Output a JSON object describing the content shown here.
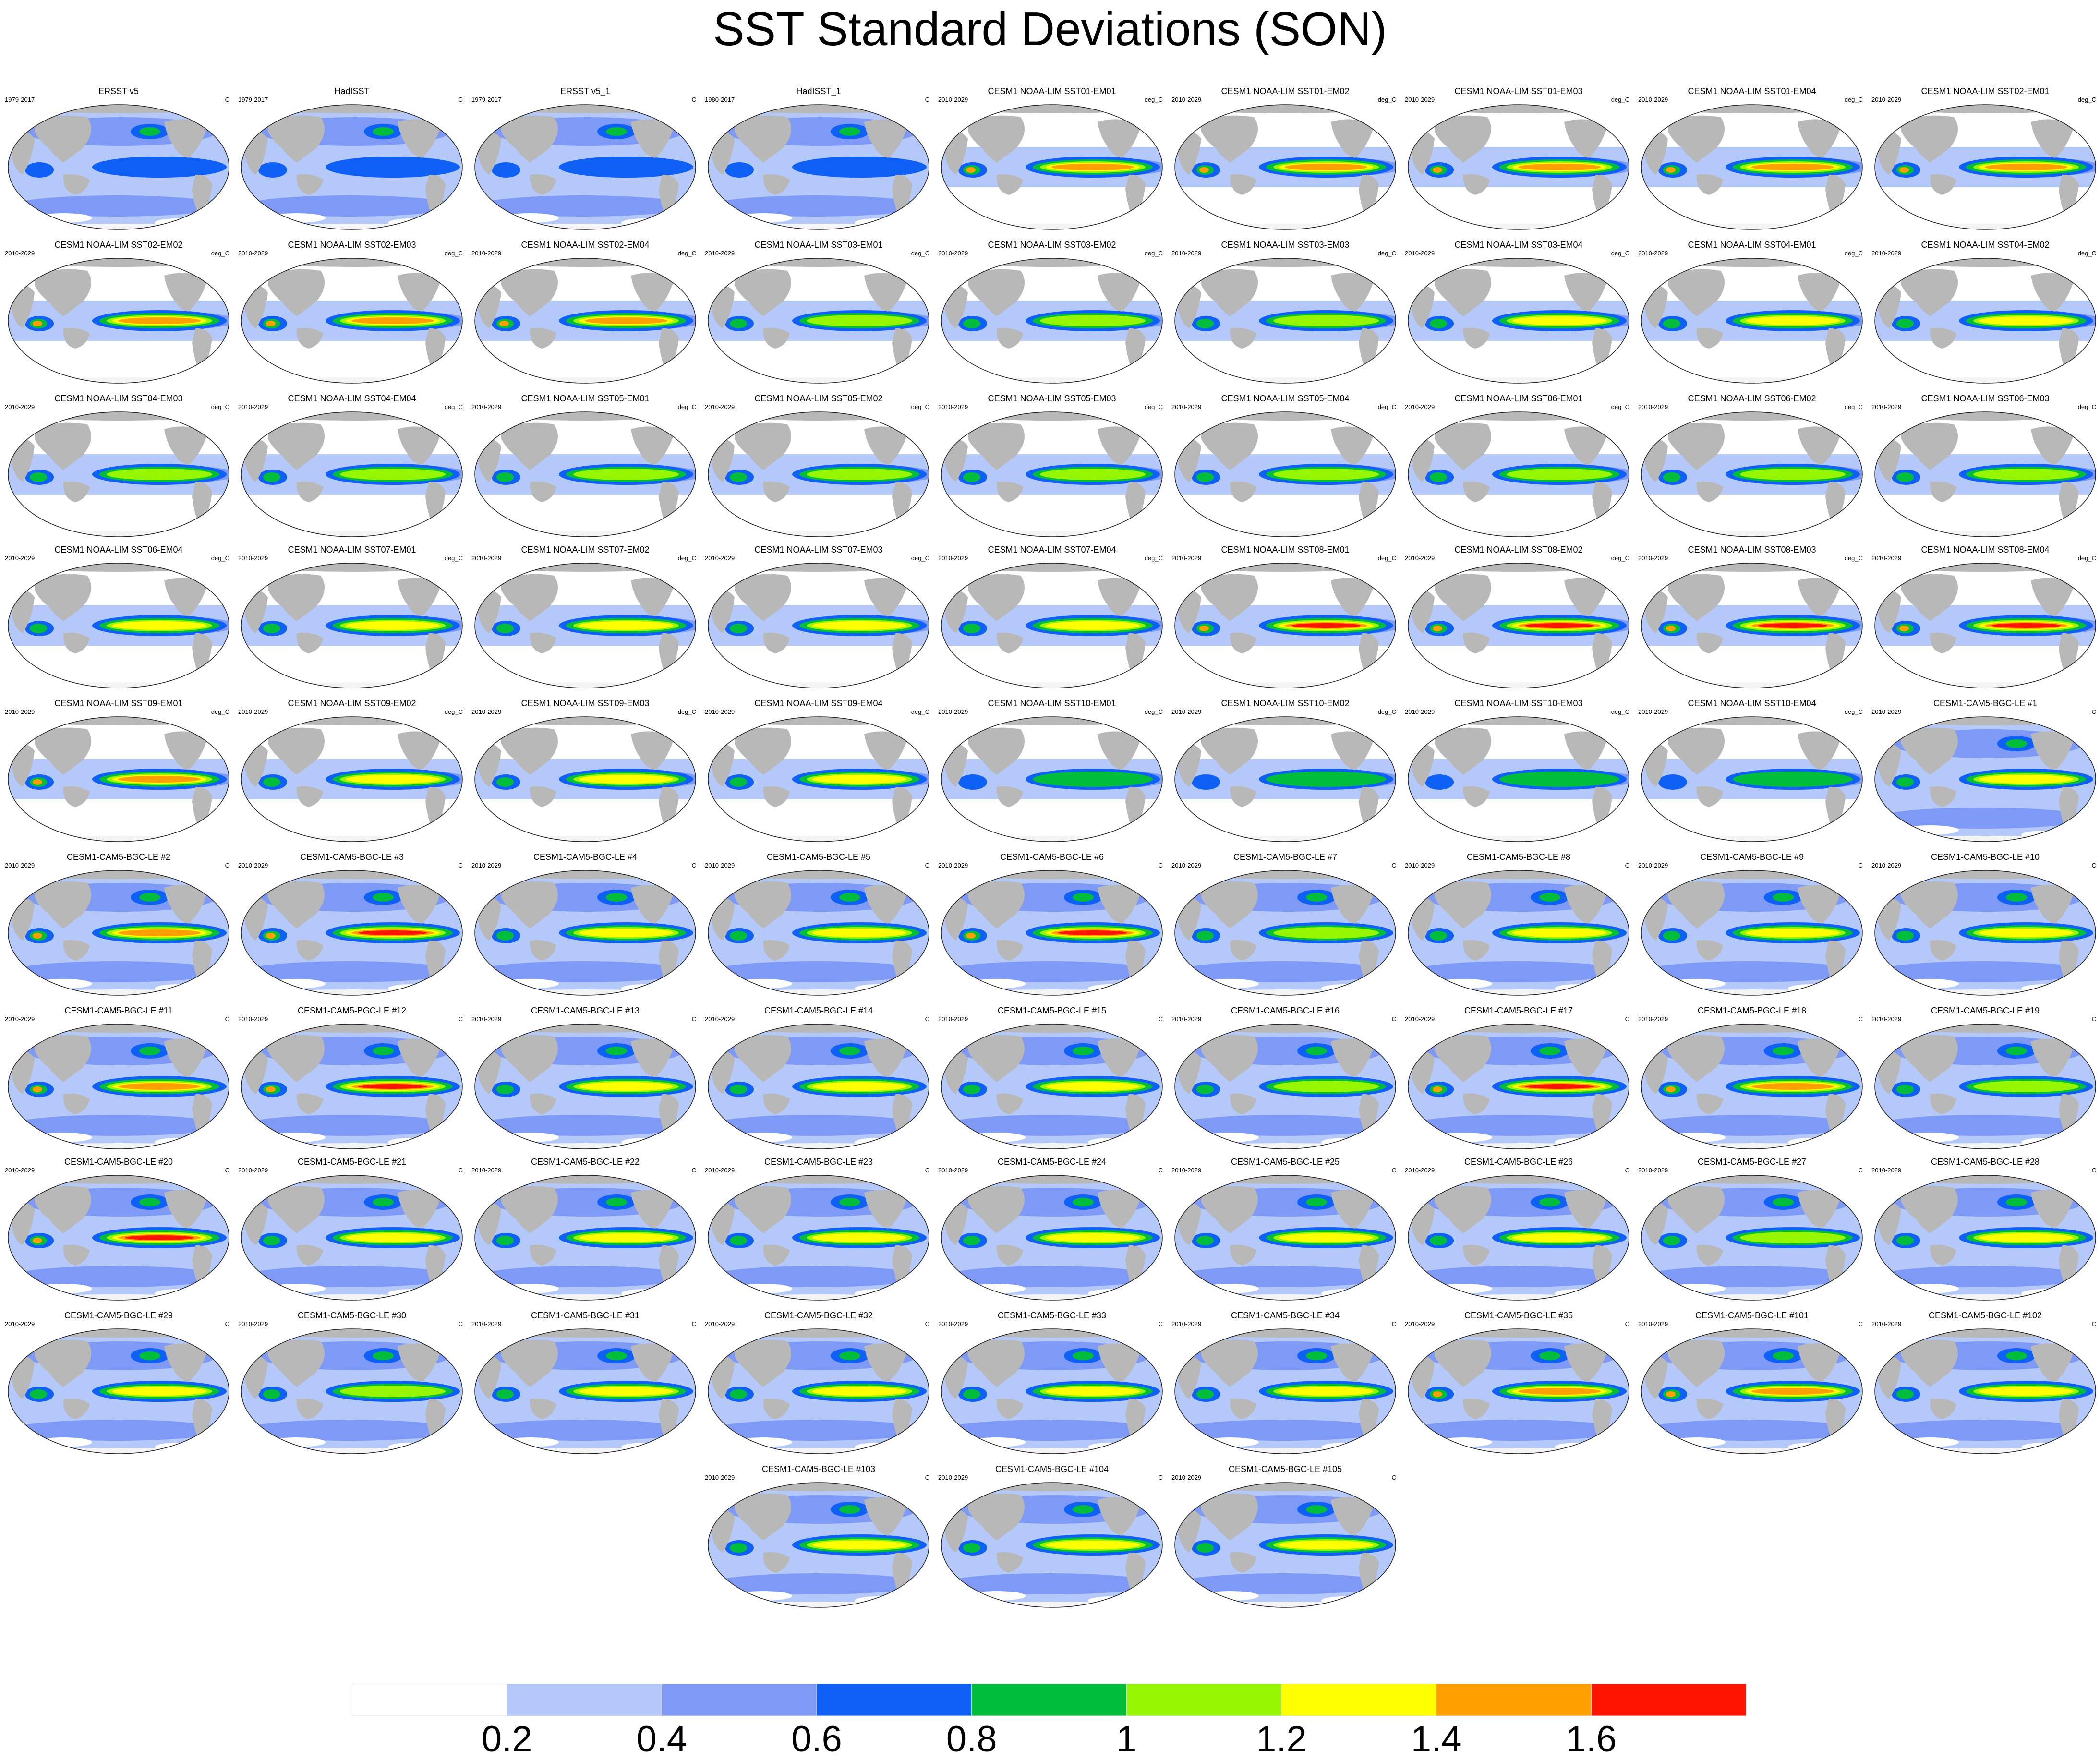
{
  "title": "SST Standard Deviations (SON)",
  "panels": [
    {
      "name": "ERSST v5",
      "period": "1979-2017",
      "units": "C",
      "type": "obs",
      "amp": 0.85
    },
    {
      "name": "HadISST",
      "period": "1979-2017",
      "units": "C",
      "type": "obs",
      "amp": 0.8
    },
    {
      "name": "ERSST v5_1",
      "period": "1979-2017",
      "units": "C",
      "type": "obs",
      "amp": 0.85
    },
    {
      "name": "HadISST_1",
      "period": "1980-2017",
      "units": "C",
      "type": "obs",
      "amp": 0.8
    },
    {
      "name": "CESM1 NOAA-LIM SST01-EM01",
      "period": "2010-2029",
      "units": "deg_C",
      "type": "lim",
      "amp": 1.5
    },
    {
      "name": "CESM1 NOAA-LIM SST01-EM02",
      "period": "2010-2029",
      "units": "deg_C",
      "type": "lim",
      "amp": 1.5
    },
    {
      "name": "CESM1 NOAA-LIM SST01-EM03",
      "period": "2010-2029",
      "units": "deg_C",
      "type": "lim",
      "amp": 1.5
    },
    {
      "name": "CESM1 NOAA-LIM SST01-EM04",
      "period": "2010-2029",
      "units": "deg_C",
      "type": "lim",
      "amp": 1.5
    },
    {
      "name": "CESM1 NOAA-LIM SST02-EM01",
      "period": "2010-2029",
      "units": "deg_C",
      "type": "lim",
      "amp": 1.5
    },
    {
      "name": "CESM1 NOAA-LIM SST02-EM02",
      "period": "2010-2029",
      "units": "deg_C",
      "type": "lim",
      "amp": 1.5
    },
    {
      "name": "CESM1 NOAA-LIM SST02-EM03",
      "period": "2010-2029",
      "units": "deg_C",
      "type": "lim",
      "amp": 1.5
    },
    {
      "name": "CESM1 NOAA-LIM SST02-EM04",
      "period": "2010-2029",
      "units": "deg_C",
      "type": "lim",
      "amp": 1.5
    },
    {
      "name": "CESM1 NOAA-LIM SST03-EM01",
      "period": "2010-2029",
      "units": "deg_C",
      "type": "lim",
      "amp": 1.1
    },
    {
      "name": "CESM1 NOAA-LIM SST03-EM02",
      "period": "2010-2029",
      "units": "deg_C",
      "type": "lim",
      "amp": 1.1
    },
    {
      "name": "CESM1 NOAA-LIM SST03-EM03",
      "period": "2010-2029",
      "units": "deg_C",
      "type": "lim",
      "amp": 1.1
    },
    {
      "name": "CESM1 NOAA-LIM SST03-EM04",
      "period": "2010-2029",
      "units": "deg_C",
      "type": "lim",
      "amp": 1.3
    },
    {
      "name": "CESM1 NOAA-LIM SST04-EM01",
      "period": "2010-2029",
      "units": "deg_C",
      "type": "lim",
      "amp": 1.3
    },
    {
      "name": "CESM1 NOAA-LIM SST04-EM02",
      "period": "2010-2029",
      "units": "deg_C",
      "type": "lim",
      "amp": 1.3
    },
    {
      "name": "CESM1 NOAA-LIM SST04-EM03",
      "period": "2010-2029",
      "units": "deg_C",
      "type": "lim",
      "amp": 1.1
    },
    {
      "name": "CESM1 NOAA-LIM SST04-EM04",
      "period": "2010-2029",
      "units": "deg_C",
      "type": "lim",
      "amp": 1.1
    },
    {
      "name": "CESM1 NOAA-LIM SST05-EM01",
      "period": "2010-2029",
      "units": "deg_C",
      "type": "lim",
      "amp": 1.1
    },
    {
      "name": "CESM1 NOAA-LIM SST05-EM02",
      "period": "2010-2029",
      "units": "deg_C",
      "type": "lim",
      "amp": 1.1
    },
    {
      "name": "CESM1 NOAA-LIM SST05-EM03",
      "period": "2010-2029",
      "units": "deg_C",
      "type": "lim",
      "amp": 1.1
    },
    {
      "name": "CESM1 NOAA-LIM SST05-EM04",
      "period": "2010-2029",
      "units": "deg_C",
      "type": "lim",
      "amp": 1.1
    },
    {
      "name": "CESM1 NOAA-LIM SST06-EM01",
      "period": "2010-2029",
      "units": "deg_C",
      "type": "lim",
      "amp": 1.1
    },
    {
      "name": "CESM1 NOAA-LIM SST06-EM02",
      "period": "2010-2029",
      "units": "deg_C",
      "type": "lim",
      "amp": 1.1
    },
    {
      "name": "CESM1 NOAA-LIM SST06-EM03",
      "period": "2010-2029",
      "units": "deg_C",
      "type": "lim",
      "amp": 1.1
    },
    {
      "name": "CESM1 NOAA-LIM SST06-EM04",
      "period": "2010-2029",
      "units": "deg_C",
      "type": "lim",
      "amp": 1.3
    },
    {
      "name": "CESM1 NOAA-LIM SST07-EM01",
      "period": "2010-2029",
      "units": "deg_C",
      "type": "lim",
      "amp": 1.3
    },
    {
      "name": "CESM1 NOAA-LIM SST07-EM02",
      "period": "2010-2029",
      "units": "deg_C",
      "type": "lim",
      "amp": 1.3
    },
    {
      "name": "CESM1 NOAA-LIM SST07-EM03",
      "period": "2010-2029",
      "units": "deg_C",
      "type": "lim",
      "amp": 1.3
    },
    {
      "name": "CESM1 NOAA-LIM SST07-EM04",
      "period": "2010-2029",
      "units": "deg_C",
      "type": "lim",
      "amp": 1.3
    },
    {
      "name": "CESM1 NOAA-LIM SST08-EM01",
      "period": "2010-2029",
      "units": "deg_C",
      "type": "lim",
      "amp": 1.75
    },
    {
      "name": "CESM1 NOAA-LIM SST08-EM02",
      "period": "2010-2029",
      "units": "deg_C",
      "type": "lim",
      "amp": 1.75
    },
    {
      "name": "CESM1 NOAA-LIM SST08-EM03",
      "period": "2010-2029",
      "units": "deg_C",
      "type": "lim",
      "amp": 1.75
    },
    {
      "name": "CESM1 NOAA-LIM SST08-EM04",
      "period": "2010-2029",
      "units": "deg_C",
      "type": "lim",
      "amp": 1.75
    },
    {
      "name": "CESM1 NOAA-LIM SST09-EM01",
      "period": "2010-2029",
      "units": "deg_C",
      "type": "lim",
      "amp": 1.5
    },
    {
      "name": "CESM1 NOAA-LIM SST09-EM02",
      "period": "2010-2029",
      "units": "deg_C",
      "type": "lim",
      "amp": 1.3
    },
    {
      "name": "CESM1 NOAA-LIM SST09-EM03",
      "period": "2010-2029",
      "units": "deg_C",
      "type": "lim",
      "amp": 1.3
    },
    {
      "name": "CESM1 NOAA-LIM SST09-EM04",
      "period": "2010-2029",
      "units": "deg_C",
      "type": "lim",
      "amp": 1.3
    },
    {
      "name": "CESM1 NOAA-LIM SST10-EM01",
      "period": "2010-2029",
      "units": "deg_C",
      "type": "lim",
      "amp": 0.9
    },
    {
      "name": "CESM1 NOAA-LIM SST10-EM02",
      "period": "2010-2029",
      "units": "deg_C",
      "type": "lim",
      "amp": 0.9
    },
    {
      "name": "CESM1 NOAA-LIM SST10-EM03",
      "period": "2010-2029",
      "units": "deg_C",
      "type": "lim",
      "amp": 0.9
    },
    {
      "name": "CESM1 NOAA-LIM SST10-EM04",
      "period": "2010-2029",
      "units": "deg_C",
      "type": "lim",
      "amp": 0.9
    },
    {
      "name": "CESM1-CAM5-BGC-LE #1",
      "period": "2010-2029",
      "units": "C",
      "type": "le",
      "amp": 1.3
    },
    {
      "name": "CESM1-CAM5-BGC-LE #2",
      "period": "2010-2029",
      "units": "C",
      "type": "le",
      "amp": 1.5
    },
    {
      "name": "CESM1-CAM5-BGC-LE #3",
      "period": "2010-2029",
      "units": "C",
      "type": "le",
      "amp": 1.7
    },
    {
      "name": "CESM1-CAM5-BGC-LE #4",
      "period": "2010-2029",
      "units": "C",
      "type": "le",
      "amp": 1.3
    },
    {
      "name": "CESM1-CAM5-BGC-LE #5",
      "period": "2010-2029",
      "units": "C",
      "type": "le",
      "amp": 1.3
    },
    {
      "name": "CESM1-CAM5-BGC-LE #6",
      "period": "2010-2029",
      "units": "C",
      "type": "le",
      "amp": 1.7
    },
    {
      "name": "CESM1-CAM5-BGC-LE #7",
      "period": "2010-2029",
      "units": "C",
      "type": "le",
      "amp": 1.1
    },
    {
      "name": "CESM1-CAM5-BGC-LE #8",
      "period": "2010-2029",
      "units": "C",
      "type": "le",
      "amp": 1.3
    },
    {
      "name": "CESM1-CAM5-BGC-LE #9",
      "period": "2010-2029",
      "units": "C",
      "type": "le",
      "amp": 1.3
    },
    {
      "name": "CESM1-CAM5-BGC-LE #10",
      "period": "2010-2029",
      "units": "C",
      "type": "le",
      "amp": 1.3
    },
    {
      "name": "CESM1-CAM5-BGC-LE #11",
      "period": "2010-2029",
      "units": "C",
      "type": "le",
      "amp": 1.5
    },
    {
      "name": "CESM1-CAM5-BGC-LE #12",
      "period": "2010-2029",
      "units": "C",
      "type": "le",
      "amp": 1.7
    },
    {
      "name": "CESM1-CAM5-BGC-LE #13",
      "period": "2010-2029",
      "units": "C",
      "type": "le",
      "amp": 1.3
    },
    {
      "name": "CESM1-CAM5-BGC-LE #14",
      "period": "2010-2029",
      "units": "C",
      "type": "le",
      "amp": 1.3
    },
    {
      "name": "CESM1-CAM5-BGC-LE #15",
      "period": "2010-2029",
      "units": "C",
      "type": "le",
      "amp": 1.3
    },
    {
      "name": "CESM1-CAM5-BGC-LE #16",
      "period": "2010-2029",
      "units": "C",
      "type": "le",
      "amp": 1.1
    },
    {
      "name": "CESM1-CAM5-BGC-LE #17",
      "period": "2010-2029",
      "units": "C",
      "type": "le",
      "amp": 1.7
    },
    {
      "name": "CESM1-CAM5-BGC-LE #18",
      "period": "2010-2029",
      "units": "C",
      "type": "le",
      "amp": 1.5
    },
    {
      "name": "CESM1-CAM5-BGC-LE #19",
      "period": "2010-2029",
      "units": "C",
      "type": "le",
      "amp": 1.1
    },
    {
      "name": "CESM1-CAM5-BGC-LE #20",
      "period": "2010-2029",
      "units": "C",
      "type": "le",
      "amp": 1.7
    },
    {
      "name": "CESM1-CAM5-BGC-LE #21",
      "period": "2010-2029",
      "units": "C",
      "type": "le",
      "amp": 1.3
    },
    {
      "name": "CESM1-CAM5-BGC-LE #22",
      "period": "2010-2029",
      "units": "C",
      "type": "le",
      "amp": 1.3
    },
    {
      "name": "CESM1-CAM5-BGC-LE #23",
      "period": "2010-2029",
      "units": "C",
      "type": "le",
      "amp": 1.3
    },
    {
      "name": "CESM1-CAM5-BGC-LE #24",
      "period": "2010-2029",
      "units": "C",
      "type": "le",
      "amp": 1.3
    },
    {
      "name": "CESM1-CAM5-BGC-LE #25",
      "period": "2010-2029",
      "units": "C",
      "type": "le",
      "amp": 1.3
    },
    {
      "name": "CESM1-CAM5-BGC-LE #26",
      "period": "2010-2029",
      "units": "C",
      "type": "le",
      "amp": 1.3
    },
    {
      "name": "CESM1-CAM5-BGC-LE #27",
      "period": "2010-2029",
      "units": "C",
      "type": "le",
      "amp": 1.1
    },
    {
      "name": "CESM1-CAM5-BGC-LE #28",
      "period": "2010-2029",
      "units": "C",
      "type": "le",
      "amp": 1.3
    },
    {
      "name": "CESM1-CAM5-BGC-LE #29",
      "period": "2010-2029",
      "units": "C",
      "type": "le",
      "amp": 1.3
    },
    {
      "name": "CESM1-CAM5-BGC-LE #30",
      "period": "2010-2029",
      "units": "C",
      "type": "le",
      "amp": 1.1
    },
    {
      "name": "CESM1-CAM5-BGC-LE #31",
      "period": "2010-2029",
      "units": "C",
      "type": "le",
      "amp": 1.3
    },
    {
      "name": "CESM1-CAM5-BGC-LE #32",
      "period": "2010-2029",
      "units": "C",
      "type": "le",
      "amp": 1.3
    },
    {
      "name": "CESM1-CAM5-BGC-LE #33",
      "period": "2010-2029",
      "units": "C",
      "type": "le",
      "amp": 1.3
    },
    {
      "name": "CESM1-CAM5-BGC-LE #34",
      "period": "2010-2029",
      "units": "C",
      "type": "le",
      "amp": 1.3
    },
    {
      "name": "CESM1-CAM5-BGC-LE #35",
      "period": "2010-2029",
      "units": "C",
      "type": "le",
      "amp": 1.5
    },
    {
      "name": "CESM1-CAM5-BGC-LE #101",
      "period": "2010-2029",
      "units": "C",
      "type": "le",
      "amp": 1.5
    },
    {
      "name": "CESM1-CAM5-BGC-LE #102",
      "period": "2010-2029",
      "units": "C",
      "type": "le",
      "amp": 1.3
    },
    {
      "name": "CESM1-CAM5-BGC-LE #103",
      "period": "2010-2029",
      "units": "C",
      "type": "le",
      "amp": 1.3
    },
    {
      "name": "CESM1-CAM5-BGC-LE #104",
      "period": "2010-2029",
      "units": "C",
      "type": "le",
      "amp": 1.3
    },
    {
      "name": "CESM1-CAM5-BGC-LE #105",
      "period": "2010-2029",
      "units": "C",
      "type": "le",
      "amp": 1.3
    }
  ],
  "colorbar": {
    "levels": [
      "0.2",
      "0.4",
      "0.6",
      "0.8",
      "1",
      "1.2",
      "1.4",
      "1.6"
    ],
    "colors": [
      "#ffffff",
      "#b4c8fa",
      "#7f99f7",
      "#0f60f5",
      "#00be3c",
      "#96f500",
      "#ffff00",
      "#ffa000",
      "#ff1400"
    ]
  },
  "palette": {
    "land": "#b8b8b8",
    "ocean_white": "#ffffff",
    "coast": "#444444"
  }
}
